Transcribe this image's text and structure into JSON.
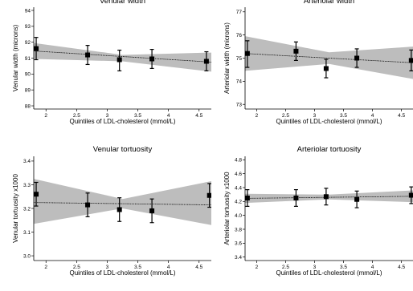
{
  "chart_data": [
    {
      "type": "scatter",
      "title": "Venular width",
      "xlabel": "Quintiles of LDL-cholesterol (mmol/L)",
      "ylabel": "Venular width (microns)",
      "xlim": [
        1.8,
        4.7
      ],
      "ylim": [
        87.8,
        94.2
      ],
      "xticks": [
        2,
        2.5,
        3,
        3.5,
        4,
        4.5
      ],
      "xtick_labels": [
        "2",
        "2.5",
        "3",
        "3.5",
        "4",
        "4.5"
      ],
      "yticks": [
        88,
        89,
        90,
        91,
        92,
        93,
        94
      ],
      "ytick_labels": [
        "88",
        "89",
        "90",
        "91",
        "92",
        "93",
        "94"
      ],
      "x": [
        1.84,
        2.68,
        3.2,
        3.73,
        4.62
      ],
      "y": [
        91.6,
        91.2,
        90.9,
        90.95,
        90.8
      ],
      "ci_low": [
        90.9,
        90.6,
        90.2,
        90.35,
        90.2
      ],
      "ci_high": [
        92.3,
        91.8,
        91.5,
        91.55,
        91.4
      ],
      "fit": {
        "x": [
          1.8,
          4.7
        ],
        "y": [
          91.45,
          90.75
        ]
      },
      "band": {
        "x": [
          1.8,
          3.25,
          4.7
        ],
        "low": [
          90.95,
          90.8,
          90.15
        ],
        "high": [
          91.95,
          91.2,
          91.35
        ]
      },
      "grid": false
    },
    {
      "type": "scatter",
      "title": "Arteriolar width",
      "xlabel": "Quintiles of LDL-cholesterol (mmol/L)",
      "ylabel": "Arteriolar width (microns)",
      "xlim": [
        1.8,
        4.7
      ],
      "ylim": [
        72.8,
        77.2
      ],
      "xticks": [
        2,
        2.5,
        3,
        3.5,
        4,
        4.5
      ],
      "xtick_labels": [
        "2",
        "2.5",
        "3",
        "3.5",
        "4",
        "4.5"
      ],
      "yticks": [
        73,
        74,
        75,
        76,
        77
      ],
      "ytick_labels": [
        "73",
        "74",
        "75",
        "76",
        "77"
      ],
      "x": [
        1.84,
        2.68,
        3.2,
        3.73,
        4.67
      ],
      "y": [
        75.2,
        75.3,
        74.55,
        75.0,
        74.9
      ],
      "ci_low": [
        74.6,
        74.9,
        74.15,
        74.6,
        74.45
      ],
      "ci_high": [
        75.75,
        75.7,
        74.95,
        75.4,
        75.35
      ],
      "fit": {
        "x": [
          1.8,
          4.7
        ],
        "y": [
          75.2,
          74.8
        ]
      },
      "band": {
        "x": [
          1.8,
          3.25,
          4.7
        ],
        "low": [
          74.45,
          74.75,
          74.1
        ],
        "high": [
          75.95,
          75.25,
          75.5
        ]
      },
      "grid": false
    },
    {
      "type": "scatter",
      "title": "Venular tortuosity",
      "xlabel": "Quintiles of LDL-cholesterol (mmol/L)",
      "ylabel": "Venular tortuosity x1000",
      "xlim": [
        1.8,
        4.7
      ],
      "ylim": [
        2.98,
        3.42
      ],
      "xticks": [
        2,
        2.5,
        3,
        3.5,
        4,
        4.5
      ],
      "xtick_labels": [
        "2",
        "2.5",
        "3",
        "3.5",
        "4",
        "4.5"
      ],
      "yticks": [
        3.0,
        3.1,
        3.2,
        3.3,
        3.4
      ],
      "ytick_labels": [
        "3.0",
        "3.1",
        "3.2",
        "3.3",
        "3.4"
      ],
      "x": [
        1.84,
        2.68,
        3.2,
        3.73,
        4.67
      ],
      "y": [
        3.26,
        3.215,
        3.195,
        3.19,
        3.255
      ],
      "ci_low": [
        3.21,
        3.165,
        3.145,
        3.14,
        3.205
      ],
      "ci_high": [
        3.31,
        3.265,
        3.245,
        3.24,
        3.305
      ],
      "fit": {
        "x": [
          1.8,
          4.7
        ],
        "y": [
          3.225,
          3.215
        ]
      },
      "band": {
        "x": [
          1.8,
          3.25,
          4.7
        ],
        "low": [
          3.135,
          3.2,
          3.13
        ],
        "high": [
          3.325,
          3.24,
          3.315
        ]
      },
      "grid": false
    },
    {
      "type": "scatter",
      "title": "Arteriolar tortuosity",
      "xlabel": "Quintiles of LDL-cholesterol (mmol/L)",
      "ylabel": "Arteriolar tortuosity x1000",
      "xlim": [
        1.8,
        4.7
      ],
      "ylim": [
        3.35,
        4.85
      ],
      "xticks": [
        2,
        2.5,
        3,
        3.5,
        4,
        4.5
      ],
      "xtick_labels": [
        "2",
        "2.5",
        "3",
        "3.5",
        "4",
        "4.5"
      ],
      "yticks": [
        3.4,
        3.6,
        3.8,
        4.0,
        4.2,
        4.4,
        4.6,
        4.8
      ],
      "ytick_labels": [
        "3.4",
        "3.6",
        "3.8",
        "4.0",
        "4.2",
        "4.4",
        "4.6",
        "4.8"
      ],
      "x": [
        1.84,
        2.68,
        3.2,
        3.73,
        4.67
      ],
      "y": [
        4.25,
        4.25,
        4.27,
        4.23,
        4.29
      ],
      "ci_low": [
        4.13,
        4.13,
        4.15,
        4.11,
        4.17
      ],
      "ci_high": [
        4.37,
        4.37,
        4.39,
        4.35,
        4.41
      ],
      "fit": {
        "x": [
          1.8,
          4.7
        ],
        "y": [
          4.245,
          4.275
        ]
      },
      "band": {
        "x": [
          1.8,
          3.25,
          4.7
        ],
        "low": [
          4.18,
          4.23,
          4.19
        ],
        "high": [
          4.31,
          4.3,
          4.36
        ]
      },
      "grid": false
    }
  ]
}
